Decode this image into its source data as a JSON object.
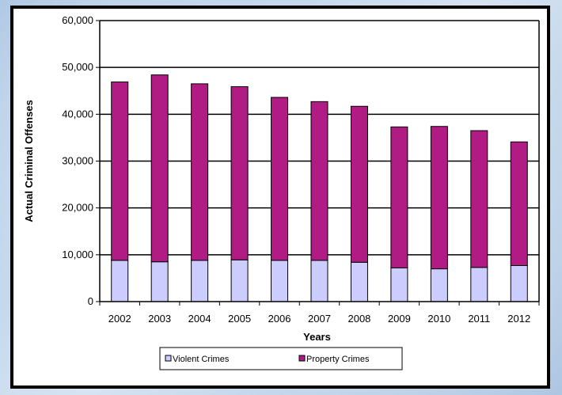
{
  "chart_data": {
    "type": "bar",
    "stacked": true,
    "categories": [
      "2002",
      "2003",
      "2004",
      "2005",
      "2006",
      "2007",
      "2008",
      "2009",
      "2010",
      "2011",
      "2012"
    ],
    "series": [
      {
        "name": "Violent Crimes",
        "color": "#ccccff",
        "values": [
          8800,
          8500,
          8800,
          8900,
          8800,
          8800,
          8400,
          7200,
          7000,
          7300,
          7700
        ]
      },
      {
        "name": "Property Crimes",
        "color": "#b01c84",
        "values": [
          38100,
          39900,
          37700,
          37000,
          34800,
          33900,
          33300,
          30100,
          30400,
          29200,
          26400
        ]
      }
    ],
    "title": "",
    "xlabel": "Years",
    "ylabel": "Actual Criminal Offenses",
    "ylim": [
      0,
      60000
    ],
    "yticks": [
      0,
      10000,
      20000,
      30000,
      40000,
      50000,
      60000
    ],
    "ytick_labels": [
      "0",
      "10,000",
      "20,000",
      "30,000",
      "40,000",
      "50,000",
      "60,000"
    ],
    "grid": true,
    "legend": "bottom"
  }
}
